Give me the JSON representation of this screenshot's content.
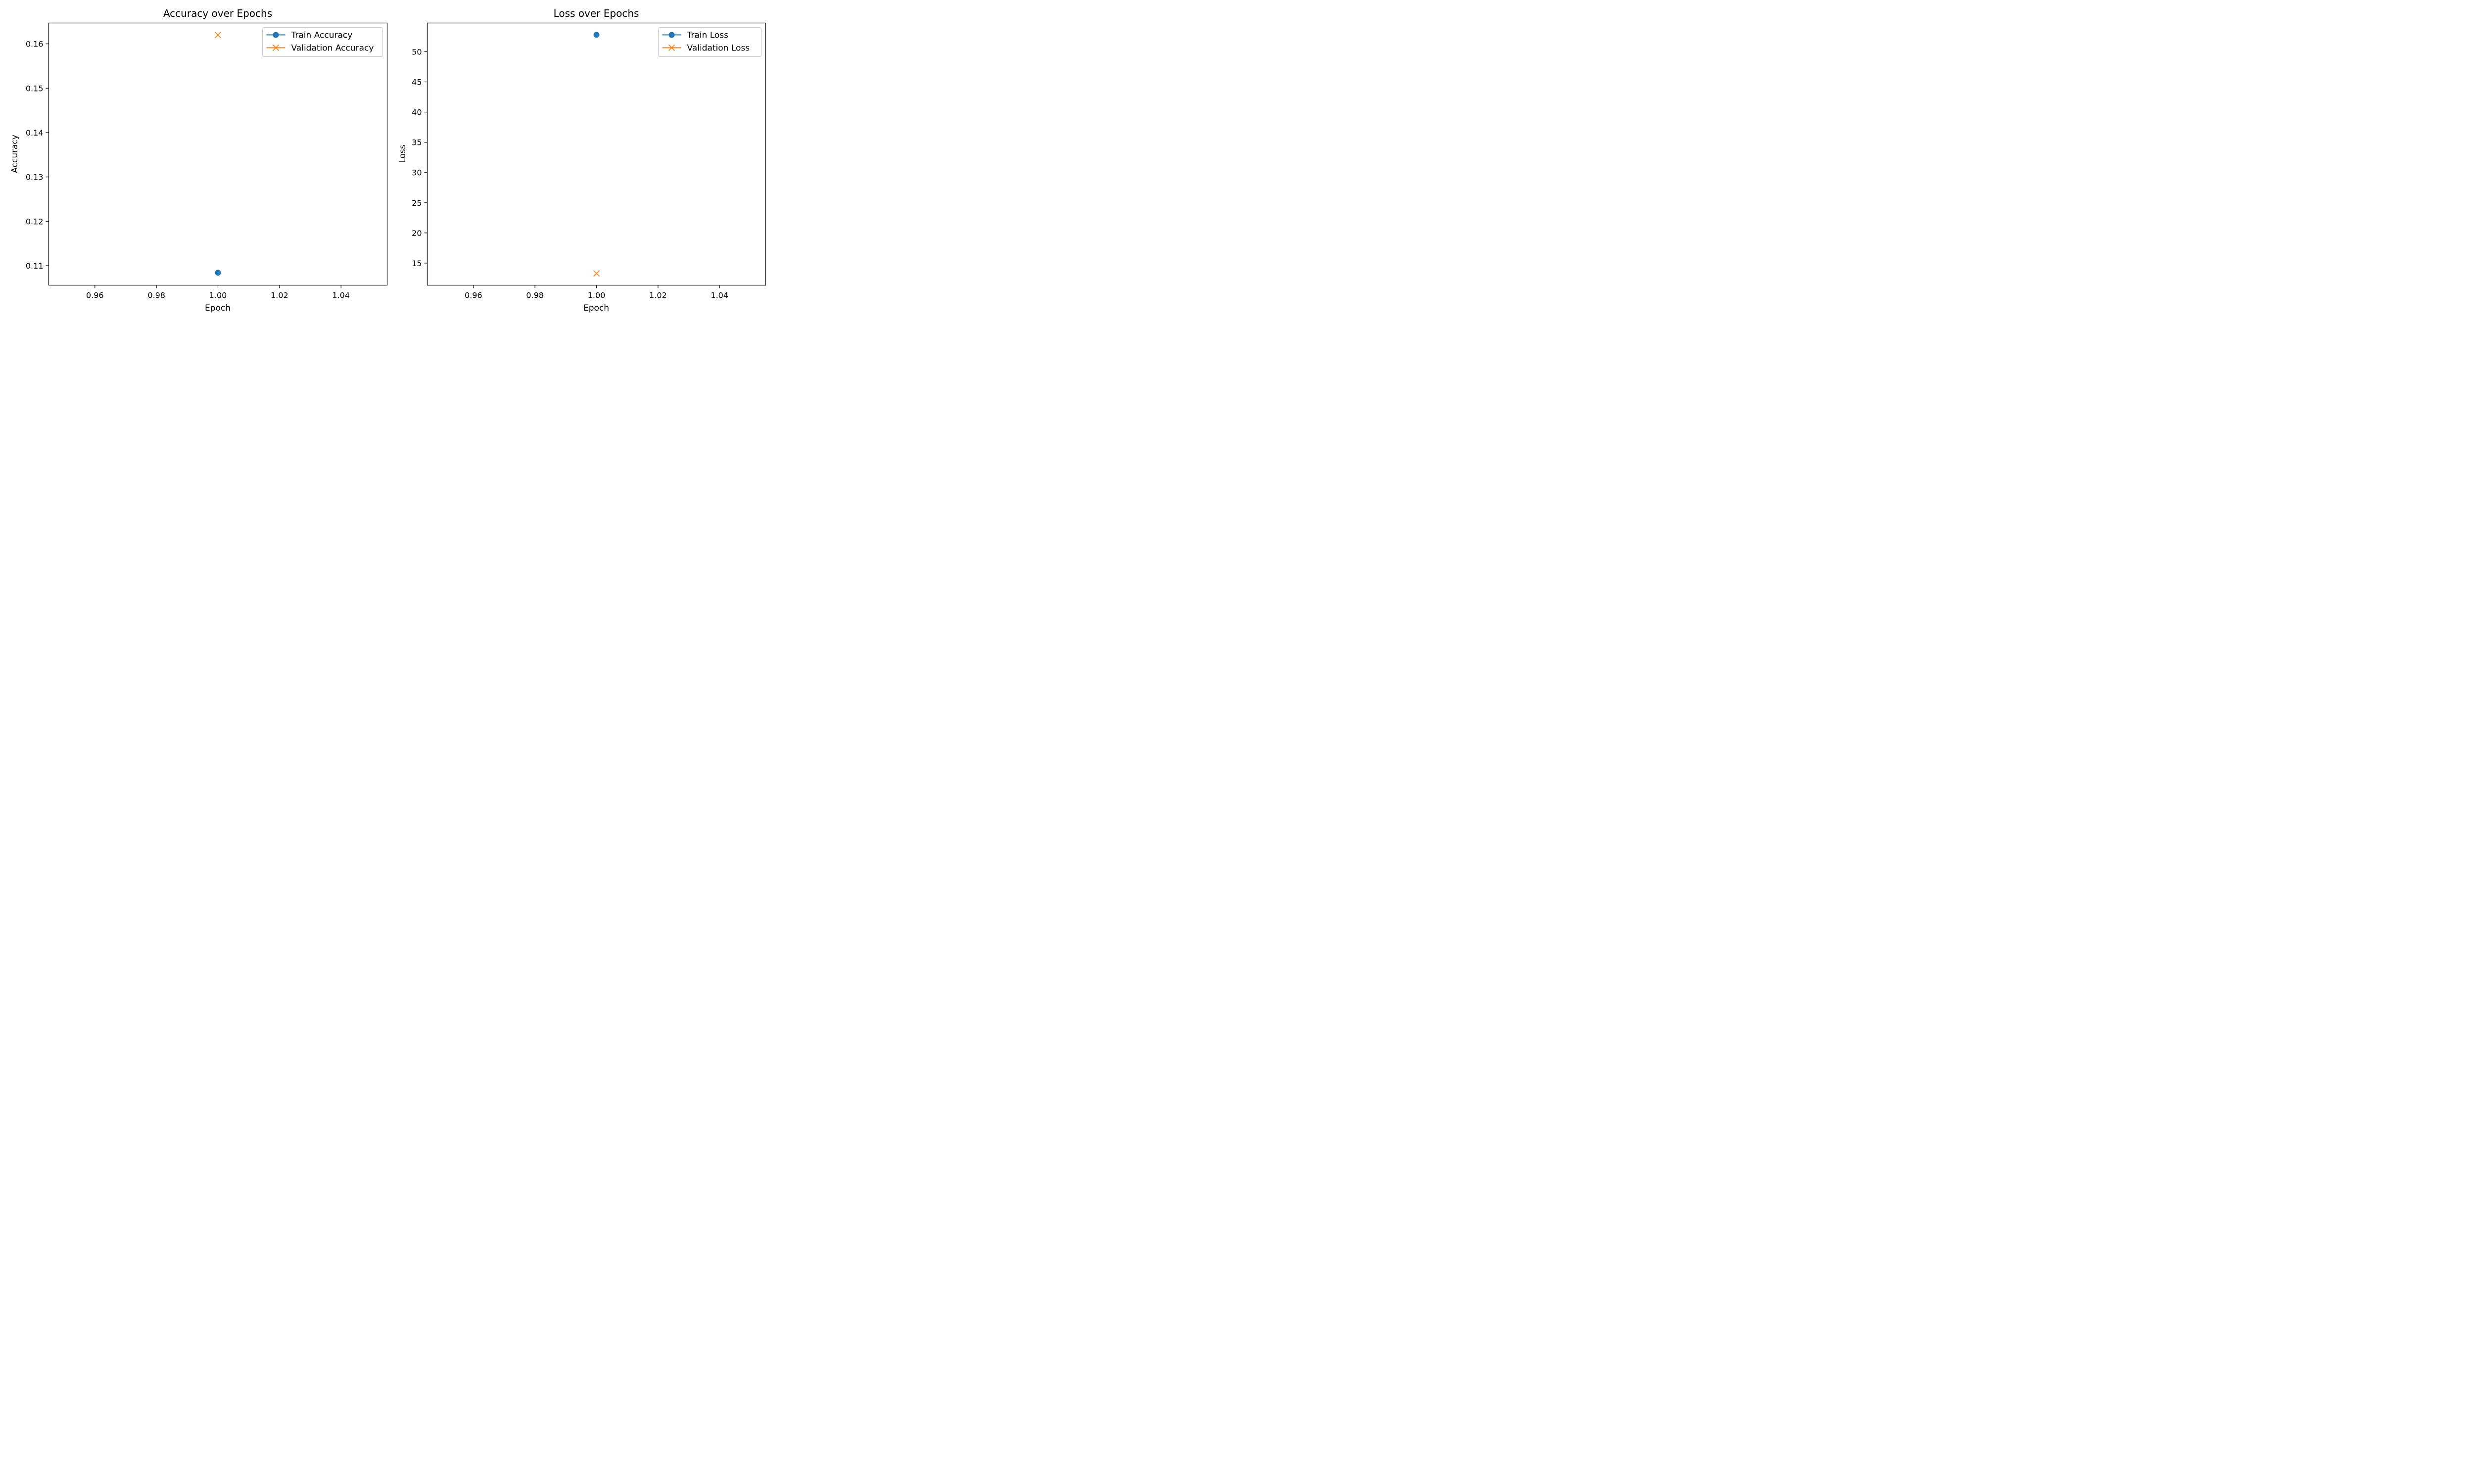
{
  "chart_data": [
    {
      "type": "scatter",
      "title": "Accuracy over Epochs",
      "xlabel": "Epoch",
      "ylabel": "Accuracy",
      "xlim": [
        0.945,
        1.055
      ],
      "ylim": [
        0.1056,
        0.1647
      ],
      "xticks": [
        0.96,
        0.98,
        1.0,
        1.02,
        1.04
      ],
      "xtick_labels": [
        "0.96",
        "0.98",
        "1.00",
        "1.02",
        "1.04"
      ],
      "yticks": [
        0.11,
        0.12,
        0.13,
        0.14,
        0.15,
        0.16
      ],
      "ytick_labels": [
        "0.11",
        "0.12",
        "0.13",
        "0.14",
        "0.15",
        "0.16"
      ],
      "grid": false,
      "legend_position": "top-right",
      "series": [
        {
          "name": "Train Accuracy",
          "marker": "circle",
          "color": "#1f77b4",
          "x": [
            1.0
          ],
          "y": [
            0.1084
          ]
        },
        {
          "name": "Validation Accuracy",
          "marker": "x",
          "color": "#ff7f0e",
          "x": [
            1.0
          ],
          "y": [
            0.162
          ]
        }
      ]
    },
    {
      "type": "scatter",
      "title": "Loss over Epochs",
      "xlabel": "Epoch",
      "ylabel": "Loss",
      "xlim": [
        0.945,
        1.055
      ],
      "ylim": [
        11.35,
        54.75
      ],
      "xticks": [
        0.96,
        0.98,
        1.0,
        1.02,
        1.04
      ],
      "xtick_labels": [
        "0.96",
        "0.98",
        "1.00",
        "1.02",
        "1.04"
      ],
      "yticks": [
        15,
        20,
        25,
        30,
        35,
        40,
        45,
        50
      ],
      "ytick_labels": [
        "15",
        "20",
        "25",
        "30",
        "35",
        "40",
        "45",
        "50"
      ],
      "grid": false,
      "legend_position": "top-right",
      "series": [
        {
          "name": "Train Loss",
          "marker": "circle",
          "color": "#1f77b4",
          "x": [
            1.0
          ],
          "y": [
            52.8
          ]
        },
        {
          "name": "Validation Loss",
          "marker": "x",
          "color": "#ff7f0e",
          "x": [
            1.0
          ],
          "y": [
            13.3
          ]
        }
      ]
    }
  ]
}
